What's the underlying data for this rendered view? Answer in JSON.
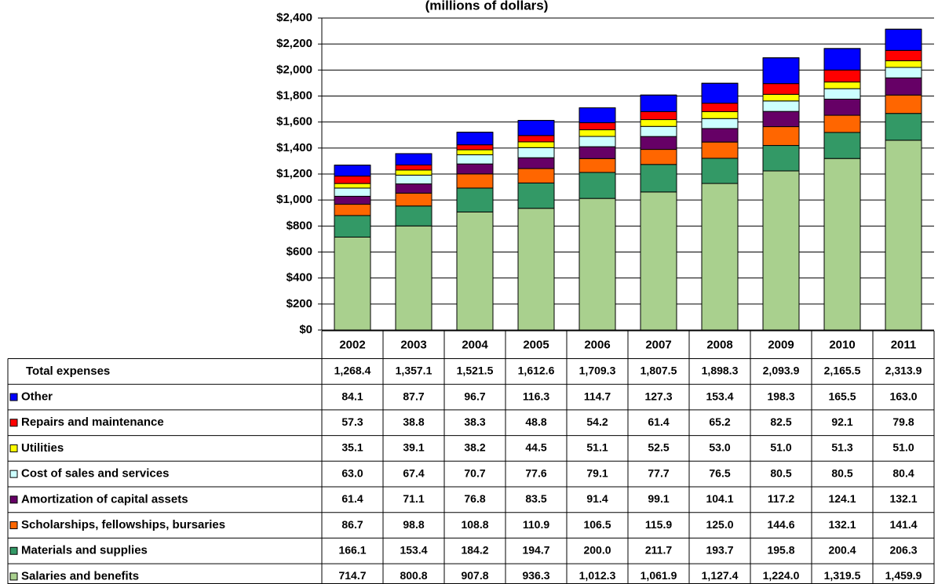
{
  "chart_data": {
    "type": "stacked_bar",
    "title": "(millions of dollars)",
    "categories": [
      "2002",
      "2003",
      "2004",
      "2005",
      "2006",
      "2007",
      "2008",
      "2009",
      "2010",
      "2011"
    ],
    "ylim": [
      0,
      2400
    ],
    "yticks": [
      {
        "value": 0,
        "label": "$0"
      },
      {
        "value": 200,
        "label": "$200"
      },
      {
        "value": 400,
        "label": "$400"
      },
      {
        "value": 600,
        "label": "$600"
      },
      {
        "value": 800,
        "label": "$800"
      },
      {
        "value": 1000,
        "label": "$1,000"
      },
      {
        "value": 1200,
        "label": "$1,200"
      },
      {
        "value": 1400,
        "label": "$1,400"
      },
      {
        "value": 1600,
        "label": "$1,600"
      },
      {
        "value": 1800,
        "label": "$1,800"
      },
      {
        "value": 2000,
        "label": "$2,000"
      },
      {
        "value": 2200,
        "label": "$2,200"
      },
      {
        "value": 2400,
        "label": "$2,400"
      }
    ],
    "grid": true,
    "total": {
      "name": "Total expenses",
      "values": [
        1268.4,
        1357.1,
        1521.5,
        1612.6,
        1709.3,
        1807.5,
        1898.3,
        2093.9,
        2165.5,
        2313.9
      ],
      "value_labels": [
        "1,268.4",
        "1,357.1",
        "1,521.5",
        "1,612.6",
        "1,709.3",
        "1,807.5",
        "1,898.3",
        "2,093.9",
        "2,165.5",
        "2,313.9"
      ]
    },
    "series": [
      {
        "name": "Other",
        "color": "#0000ff",
        "values": [
          84.1,
          87.7,
          96.7,
          116.3,
          114.7,
          127.3,
          153.4,
          198.3,
          165.5,
          163.0
        ],
        "value_labels": [
          "84.1",
          "87.7",
          "96.7",
          "116.3",
          "114.7",
          "127.3",
          "153.4",
          "198.3",
          "165.5",
          "163.0"
        ]
      },
      {
        "name": "Repairs and maintenance",
        "color": "#ff0000",
        "values": [
          57.3,
          38.8,
          38.3,
          48.8,
          54.2,
          61.4,
          65.2,
          82.5,
          92.1,
          79.8
        ],
        "value_labels": [
          "57.3",
          "38.8",
          "38.3",
          "48.8",
          "54.2",
          "61.4",
          "65.2",
          "82.5",
          "92.1",
          "79.8"
        ]
      },
      {
        "name": "Utilities",
        "color": "#ffff00",
        "values": [
          35.1,
          39.1,
          38.2,
          44.5,
          51.1,
          52.5,
          53.0,
          51.0,
          51.3,
          51.0
        ],
        "value_labels": [
          "35.1",
          "39.1",
          "38.2",
          "44.5",
          "51.1",
          "52.5",
          "53.0",
          "51.0",
          "51.3",
          "51.0"
        ]
      },
      {
        "name": "Cost of sales and services",
        "color": "#ccffff",
        "values": [
          63.0,
          67.4,
          70.7,
          77.6,
          79.1,
          77.7,
          76.5,
          80.5,
          80.5,
          80.4
        ],
        "value_labels": [
          "63.0",
          "67.4",
          "70.7",
          "77.6",
          "79.1",
          "77.7",
          "76.5",
          "80.5",
          "80.5",
          "80.4"
        ]
      },
      {
        "name": "Amortization of capital assets",
        "color": "#660066",
        "values": [
          61.4,
          71.1,
          76.8,
          83.5,
          91.4,
          99.1,
          104.1,
          117.2,
          124.1,
          132.1
        ],
        "value_labels": [
          "61.4",
          "71.1",
          "76.8",
          "83.5",
          "91.4",
          "99.1",
          "104.1",
          "117.2",
          "124.1",
          "132.1"
        ]
      },
      {
        "name": "Scholarships, fellowships, bursaries",
        "color": "#ff6600",
        "values": [
          86.7,
          98.8,
          108.8,
          110.9,
          106.5,
          115.9,
          125.0,
          144.6,
          132.1,
          141.4
        ],
        "value_labels": [
          "86.7",
          "98.8",
          "108.8",
          "110.9",
          "106.5",
          "115.9",
          "125.0",
          "144.6",
          "132.1",
          "141.4"
        ]
      },
      {
        "name": "Materials and supplies",
        "color": "#339966",
        "values": [
          166.1,
          153.4,
          184.2,
          194.7,
          200.0,
          211.7,
          193.7,
          195.8,
          200.4,
          206.3
        ],
        "value_labels": [
          "166.1",
          "153.4",
          "184.2",
          "194.7",
          "200.0",
          "211.7",
          "193.7",
          "195.8",
          "200.4",
          "206.3"
        ]
      },
      {
        "name": "Salaries and benefits",
        "color": "#a9d08e",
        "values": [
          714.7,
          800.8,
          907.8,
          936.3,
          1012.3,
          1061.9,
          1127.4,
          1224.0,
          1319.5,
          1459.9
        ],
        "value_labels": [
          "714.7",
          "800.8",
          "907.8",
          "936.3",
          "1,012.3",
          "1,061.9",
          "1,127.4",
          "1,224.0",
          "1,319.5",
          "1,459.9"
        ]
      }
    ]
  }
}
